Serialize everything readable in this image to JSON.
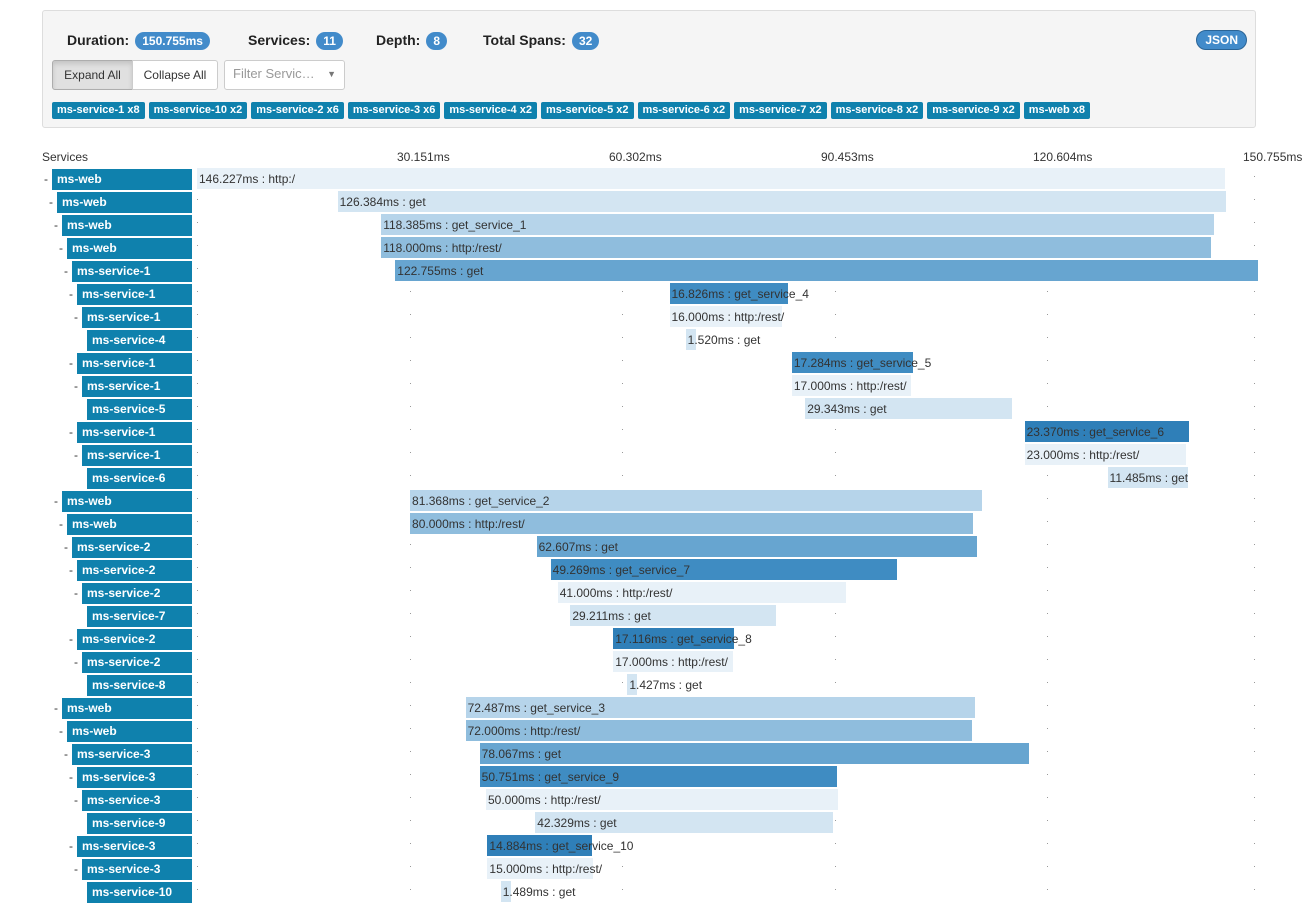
{
  "summary": {
    "duration_label": "Duration:",
    "duration": "150.755ms",
    "services_label": "Services:",
    "services": "11",
    "depth_label": "Depth:",
    "depth": "8",
    "spans_label": "Total Spans:",
    "spans": "32",
    "json_label": "JSON"
  },
  "controls": {
    "expand": "Expand All",
    "collapse": "Collapse All",
    "filter_placeholder": "Filter Servic…"
  },
  "service_tags": [
    "ms-service-1 x8",
    "ms-service-10 x2",
    "ms-service-2 x6",
    "ms-service-3 x6",
    "ms-service-4 x2",
    "ms-service-5 x2",
    "ms-service-6 x2",
    "ms-service-7 x2",
    "ms-service-8 x2",
    "ms-service-9 x2",
    "ms-web x8"
  ],
  "timeline": {
    "services_header": "Services",
    "ticks": [
      "30.151ms",
      "60.302ms",
      "90.453ms",
      "120.604ms",
      "150.755ms"
    ],
    "colors": {
      "service": "#0f81ad",
      "shades": [
        "#e8f1f8",
        "#d3e5f2",
        "#b6d4ea",
        "#8fbddd",
        "#67a5d0",
        "#3f8cc2",
        "#2f7fb8"
      ]
    },
    "spans": [
      {
        "service": "ms-web",
        "depth": 0,
        "dash": true,
        "start_ms": 0,
        "bar_ms": 146.227,
        "label": "146.227ms : http:/",
        "shade": 0,
        "label_offset": 0
      },
      {
        "service": "ms-web",
        "depth": 1,
        "dash": true,
        "start_ms": 20.0,
        "bar_ms": 126.384,
        "label": "126.384ms : get",
        "shade": 1
      },
      {
        "service": "ms-web",
        "depth": 2,
        "dash": true,
        "start_ms": 26.2,
        "bar_ms": 118.385,
        "label": "118.385ms : get_service_1",
        "shade": 2
      },
      {
        "service": "ms-web",
        "depth": 3,
        "dash": true,
        "start_ms": 26.2,
        "bar_ms": 118.0,
        "label": "118.000ms : http:/rest/",
        "shade": 3
      },
      {
        "service": "ms-service-1",
        "depth": 4,
        "dash": true,
        "start_ms": 28.2,
        "bar_ms": 122.755,
        "label": "122.755ms : get",
        "shade": 4
      },
      {
        "service": "ms-service-1",
        "depth": 5,
        "dash": true,
        "start_ms": 67.2,
        "bar_ms": 16.826,
        "label": "16.826ms : get_service_4",
        "shade": 5
      },
      {
        "service": "ms-service-1",
        "depth": 6,
        "dash": true,
        "start_ms": 67.2,
        "bar_ms": 16.0,
        "label": "16.000ms : http:/rest/",
        "shade": 0
      },
      {
        "service": "ms-service-4",
        "depth": 7,
        "dash": false,
        "start_ms": 69.5,
        "bar_ms": 1.52,
        "label": "1.520ms : get",
        "shade": 1
      },
      {
        "service": "ms-service-1",
        "depth": 5,
        "dash": true,
        "start_ms": 84.6,
        "bar_ms": 17.284,
        "label": "17.284ms : get_service_5",
        "shade": 5
      },
      {
        "service": "ms-service-1",
        "depth": 6,
        "dash": true,
        "start_ms": 84.6,
        "bar_ms": 17.0,
        "label": "17.000ms : http:/rest/",
        "shade": 0
      },
      {
        "service": "ms-service-5",
        "depth": 7,
        "dash": false,
        "start_ms": 86.5,
        "bar_ms": 29.343,
        "label": "29.343ms : get",
        "shade": 1
      },
      {
        "service": "ms-service-1",
        "depth": 5,
        "dash": true,
        "start_ms": 117.7,
        "bar_ms": 23.37,
        "label": "23.370ms : get_service_6",
        "shade": 6
      },
      {
        "service": "ms-service-1",
        "depth": 6,
        "dash": true,
        "start_ms": 117.7,
        "bar_ms": 23.0,
        "label": "23.000ms : http:/rest/",
        "shade": 0
      },
      {
        "service": "ms-service-6",
        "depth": 7,
        "dash": false,
        "start_ms": 129.5,
        "bar_ms": 11.485,
        "label": "11.485ms : get",
        "shade": 1
      },
      {
        "service": "ms-web",
        "depth": 2,
        "dash": true,
        "start_ms": 30.3,
        "bar_ms": 81.368,
        "label": "81.368ms : get_service_2",
        "shade": 2
      },
      {
        "service": "ms-web",
        "depth": 3,
        "dash": true,
        "start_ms": 30.3,
        "bar_ms": 80.0,
        "label": "80.000ms : http:/rest/",
        "shade": 3
      },
      {
        "service": "ms-service-2",
        "depth": 4,
        "dash": true,
        "start_ms": 48.3,
        "bar_ms": 62.607,
        "label": "62.607ms : get",
        "shade": 4
      },
      {
        "service": "ms-service-2",
        "depth": 5,
        "dash": true,
        "start_ms": 50.3,
        "bar_ms": 49.269,
        "label": "49.269ms : get_service_7",
        "shade": 5
      },
      {
        "service": "ms-service-2",
        "depth": 6,
        "dash": true,
        "start_ms": 51.3,
        "bar_ms": 41.0,
        "label": "41.000ms : http:/rest/",
        "shade": 0
      },
      {
        "service": "ms-service-7",
        "depth": 7,
        "dash": false,
        "start_ms": 53.1,
        "bar_ms": 29.211,
        "label": "29.211ms : get",
        "shade": 1
      },
      {
        "service": "ms-service-2",
        "depth": 5,
        "dash": true,
        "start_ms": 59.2,
        "bar_ms": 17.116,
        "label": "17.116ms : get_service_8",
        "shade": 6
      },
      {
        "service": "ms-service-2",
        "depth": 6,
        "dash": true,
        "start_ms": 59.2,
        "bar_ms": 17.0,
        "label": "17.000ms : http:/rest/",
        "shade": 0
      },
      {
        "service": "ms-service-8",
        "depth": 7,
        "dash": false,
        "start_ms": 61.2,
        "bar_ms": 1.427,
        "label": "1.427ms : get",
        "shade": 1
      },
      {
        "service": "ms-web",
        "depth": 2,
        "dash": true,
        "start_ms": 38.2,
        "bar_ms": 72.487,
        "label": "72.487ms : get_service_3",
        "shade": 2
      },
      {
        "service": "ms-web",
        "depth": 3,
        "dash": true,
        "start_ms": 38.2,
        "bar_ms": 72.0,
        "label": "72.000ms : http:/rest/",
        "shade": 3
      },
      {
        "service": "ms-service-3",
        "depth": 4,
        "dash": true,
        "start_ms": 40.2,
        "bar_ms": 78.067,
        "label": "78.067ms : get",
        "shade": 4
      },
      {
        "service": "ms-service-3",
        "depth": 5,
        "dash": true,
        "start_ms": 40.2,
        "bar_ms": 50.751,
        "label": "50.751ms : get_service_9",
        "shade": 5
      },
      {
        "service": "ms-service-3",
        "depth": 6,
        "dash": true,
        "start_ms": 41.1,
        "bar_ms": 50.0,
        "label": "50.000ms : http:/rest/",
        "shade": 0
      },
      {
        "service": "ms-service-9",
        "depth": 7,
        "dash": false,
        "start_ms": 48.1,
        "bar_ms": 42.329,
        "label": "42.329ms : get",
        "shade": 1
      },
      {
        "service": "ms-service-3",
        "depth": 5,
        "dash": true,
        "start_ms": 41.3,
        "bar_ms": 14.884,
        "label": "14.884ms : get_service_10",
        "shade": 6
      },
      {
        "service": "ms-service-3",
        "depth": 6,
        "dash": true,
        "start_ms": 41.3,
        "bar_ms": 15.0,
        "label": "15.000ms : http:/rest/",
        "shade": 0
      },
      {
        "service": "ms-service-10",
        "depth": 7,
        "dash": false,
        "start_ms": 43.2,
        "bar_ms": 1.489,
        "label": "1.489ms : get",
        "shade": 1
      }
    ]
  }
}
